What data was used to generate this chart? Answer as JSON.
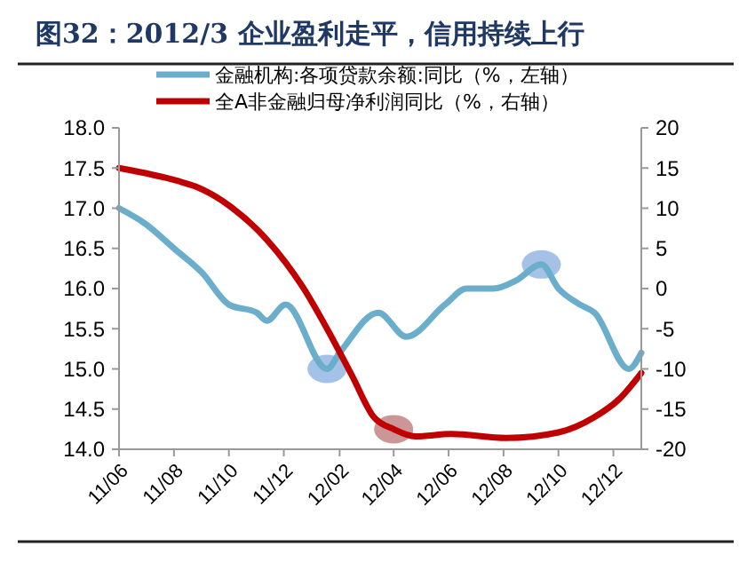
{
  "chart_data": {
    "type": "line",
    "title": "图32：2012/3 企业盈利走平，信用持续上行",
    "xlim": [
      "2011-06-01",
      "2013-01-01"
    ],
    "xticks": [
      {
        "value": "2011-06-01",
        "label": "11/06"
      },
      {
        "value": "2011-08-01",
        "label": "11/08"
      },
      {
        "value": "2011-10-01",
        "label": "11/10"
      },
      {
        "value": "2011-12-01",
        "label": "11/12"
      },
      {
        "value": "2012-02-01",
        "label": "12/02"
      },
      {
        "value": "2012-04-01",
        "label": "12/04"
      },
      {
        "value": "2012-06-01",
        "label": "12/06"
      },
      {
        "value": "2012-08-01",
        "label": "12/08"
      },
      {
        "value": "2012-10-01",
        "label": "12/10"
      },
      {
        "value": "2012-12-01",
        "label": "12/12"
      }
    ],
    "ylim": [
      14,
      18
    ],
    "yticks": [
      {
        "value": 14,
        "label": "14.0"
      },
      {
        "value": 14.5,
        "label": "14.5"
      },
      {
        "value": 15,
        "label": "15.0"
      },
      {
        "value": 15.5,
        "label": "15.5"
      },
      {
        "value": 16,
        "label": "16.0"
      },
      {
        "value": 16.5,
        "label": "16.5"
      },
      {
        "value": 17,
        "label": "17.0"
      },
      {
        "value": 17.5,
        "label": "17.5"
      },
      {
        "value": 18,
        "label": "18.0"
      }
    ],
    "y2lim": [
      -20,
      20
    ],
    "y2ticks": [
      -20,
      -15,
      -10,
      -5,
      0,
      5,
      10,
      15,
      20
    ],
    "grid": false,
    "legend": "top",
    "marker": "none",
    "line_style": "solid",
    "series": [
      {
        "name": "金融机构:各项贷款余额:同比（%，左轴）",
        "color": "#6aaecb",
        "x": [
          "2011-06-01",
          "2011-07-01",
          "2011-08-01",
          "2011-09-01",
          "2011-10-01",
          "2011-11-01",
          "2011-11-12",
          "2011-12-03",
          "2012-01-18",
          "2012-02-01",
          "2012-03-15",
          "2012-04-15",
          "2012-05-28",
          "2012-06-21",
          "2012-07-21",
          "2012-08-15",
          "2012-09-12",
          "2012-10-01",
          "2012-10-25",
          "2012-11-10",
          "2012-12-18",
          "2013-01-01"
        ],
        "values": [
          17.0,
          16.8,
          16.5,
          16.2,
          15.8,
          15.7,
          15.6,
          15.8,
          15.0,
          15.2,
          15.7,
          15.4,
          15.8,
          16.0,
          16.0,
          16.1,
          16.3,
          16.0,
          15.8,
          15.7,
          15.0,
          15.2
        ]
      },
      {
        "name": "全A非金融归母净利润同比（%，右轴）",
        "color": "#c00000",
        "axis": "y2",
        "x": [
          "2011-06-01",
          "2011-08-05",
          "2011-08-25",
          "2011-10-04",
          "2011-11-12",
          "2011-12-22",
          "2012-01-18",
          "2012-02-15",
          "2012-03-10",
          "2012-04-01",
          "2012-04-25",
          "2012-06-04",
          "2012-08-04",
          "2012-10-01",
          "2012-11-10",
          "2012-12-07",
          "2013-01-01"
        ],
        "values": [
          15,
          13.4,
          12.7,
          10.1,
          6.1,
          0.2,
          -5,
          -10.9,
          -16,
          -17.5,
          -18.4,
          -18.1,
          -18.6,
          -17.9,
          -16,
          -13.8,
          -10.5
        ]
      }
    ]
  }
}
